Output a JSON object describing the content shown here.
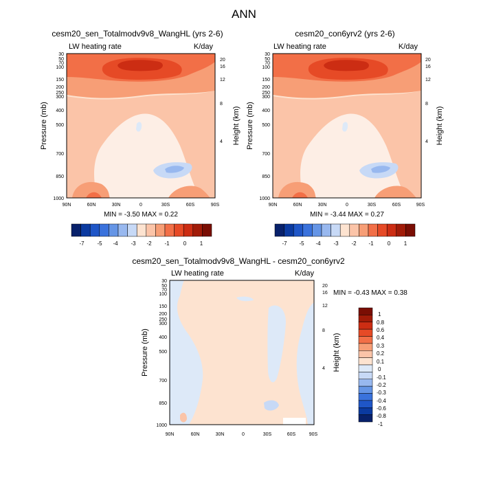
{
  "figure": {
    "title": "ANN"
  },
  "chart_data": [
    {
      "type": "heatmap",
      "title": "cesm20_sen_Totalmodv9v8_WangHL (yrs 2-6)",
      "left_label": "LW heating rate",
      "right_label": "K/day",
      "ylabel": "Pressure (mb)",
      "ylabel_right": "Height (km)",
      "x_ticks": [
        "90N",
        "60N",
        "30N",
        "0",
        "30S",
        "60S",
        "90S"
      ],
      "y_ticks": [
        "30",
        "50",
        "70",
        "100",
        "150",
        "200",
        "250",
        "300",
        "400",
        "500",
        "700",
        "850",
        "1000"
      ],
      "height_ticks": [
        "20",
        "16",
        "12",
        "8",
        "4"
      ],
      "min": "-3.50",
      "max": "0.22",
      "stats_text": "MIN = -3.50 MAX = 0.22",
      "ylim": [
        30,
        1000
      ],
      "xlim": [
        "90N",
        "90S"
      ],
      "colorbar": {
        "orientation": "horizontal",
        "labels": [
          "-7",
          "-5",
          "-4",
          "-3",
          "-2",
          "-1",
          "0",
          "1"
        ],
        "colors": [
          "#08216b",
          "#0b3aa0",
          "#1f56c7",
          "#3a72dc",
          "#6595e6",
          "#98b8ef",
          "#c7d9f6",
          "#fde3d0",
          "#fbc4a8",
          "#f79e76",
          "#f26f47",
          "#e64a26",
          "#cc2d13",
          "#a11b08",
          "#7a0e04"
        ]
      }
    },
    {
      "type": "heatmap",
      "title": "cesm20_con6yrv2 (yrs 2-6)",
      "left_label": "LW heating rate",
      "right_label": "K/day",
      "ylabel": "Pressure (mb)",
      "ylabel_right": "Height (km)",
      "x_ticks": [
        "90N",
        "60N",
        "30N",
        "0",
        "30S",
        "60S",
        "90S"
      ],
      "y_ticks": [
        "30",
        "50",
        "70",
        "100",
        "150",
        "200",
        "250",
        "300",
        "400",
        "500",
        "700",
        "850",
        "1000"
      ],
      "height_ticks": [
        "20",
        "16",
        "12",
        "8",
        "4"
      ],
      "min": "-3.44",
      "max": "0.27",
      "stats_text": "MIN = -3.44 MAX = 0.27",
      "ylim": [
        30,
        1000
      ],
      "xlim": [
        "90N",
        "90S"
      ],
      "colorbar": {
        "orientation": "horizontal",
        "labels": [
          "-7",
          "-5",
          "-4",
          "-3",
          "-2",
          "-1",
          "0",
          "1"
        ],
        "colors": [
          "#08216b",
          "#0b3aa0",
          "#1f56c7",
          "#3a72dc",
          "#6595e6",
          "#98b8ef",
          "#c7d9f6",
          "#fde3d0",
          "#fbc4a8",
          "#f79e76",
          "#f26f47",
          "#e64a26",
          "#cc2d13",
          "#a11b08",
          "#7a0e04"
        ]
      }
    },
    {
      "type": "heatmap",
      "title": "cesm20_sen_Totalmodv9v8_WangHL - cesm20_con6yrv2",
      "left_label": "LW heating rate",
      "right_label": "K/day",
      "ylabel": "Pressure (mb)",
      "ylabel_right": "Height (km)",
      "x_ticks": [
        "90N",
        "60N",
        "30N",
        "0",
        "30S",
        "60S",
        "90S"
      ],
      "y_ticks": [
        "30",
        "50",
        "70",
        "100",
        "150",
        "200",
        "250",
        "300",
        "400",
        "500",
        "700",
        "850",
        "1000"
      ],
      "height_ticks": [
        "20",
        "16",
        "12",
        "8",
        "4"
      ],
      "min": "-0.43",
      "max": "0.38",
      "stats_text": "MIN = -0.43 MAX = 0.38",
      "ylim": [
        30,
        1000
      ],
      "xlim": [
        "90N",
        "90S"
      ],
      "colorbar": {
        "orientation": "vertical",
        "labels": [
          "1",
          "0.8",
          "0.6",
          "0.4",
          "0.3",
          "0.2",
          "0.1",
          "0",
          "-0.1",
          "-0.2",
          "-0.3",
          "-0.4",
          "-0.6",
          "-0.8",
          "-1"
        ],
        "colors": [
          "#7a0e04",
          "#a11b08",
          "#cc2d13",
          "#e64a26",
          "#f26f47",
          "#f79e76",
          "#fbc4a8",
          "#fde3d0",
          "#dde9f8",
          "#c7d9f6",
          "#98b8ef",
          "#6595e6",
          "#3a72dc",
          "#1f56c7",
          "#0b3aa0",
          "#08216b"
        ]
      }
    }
  ]
}
